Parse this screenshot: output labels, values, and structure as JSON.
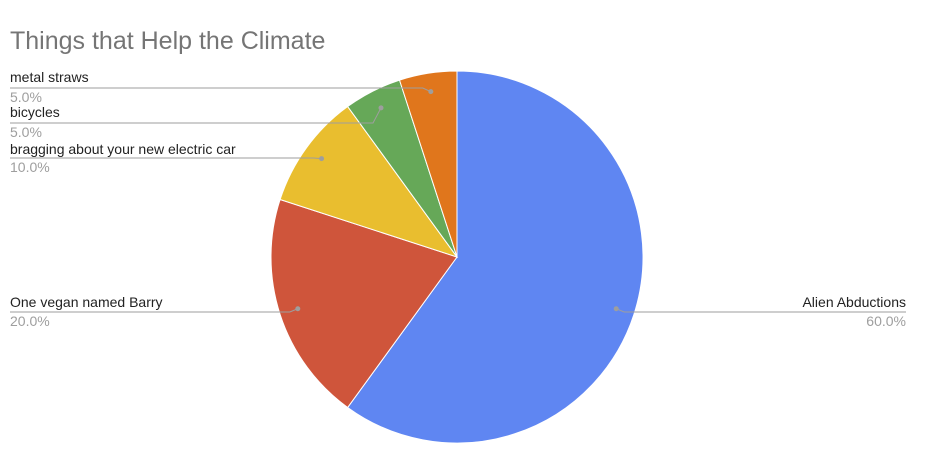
{
  "chart_data": {
    "type": "pie",
    "title": "Things that Help the Climate",
    "slices": [
      {
        "label": "Alien Abductions",
        "value": 60.0,
        "pct_label": "60.0%",
        "color": "#5f86f2"
      },
      {
        "label": "One vegan named Barry",
        "value": 20.0,
        "pct_label": "20.0%",
        "color": "#cf553b"
      },
      {
        "label": "bragging about your new electric car",
        "value": 10.0,
        "pct_label": "10.0%",
        "color": "#e9be2f"
      },
      {
        "label": "bicycles",
        "value": 5.0,
        "pct_label": "5.0%",
        "color": "#66a858"
      },
      {
        "label": "metal straws",
        "value": 5.0,
        "pct_label": "5.0%",
        "color": "#e0761c"
      }
    ],
    "legend": "none",
    "start_angle_deg": 0,
    "direction": "clockwise"
  }
}
